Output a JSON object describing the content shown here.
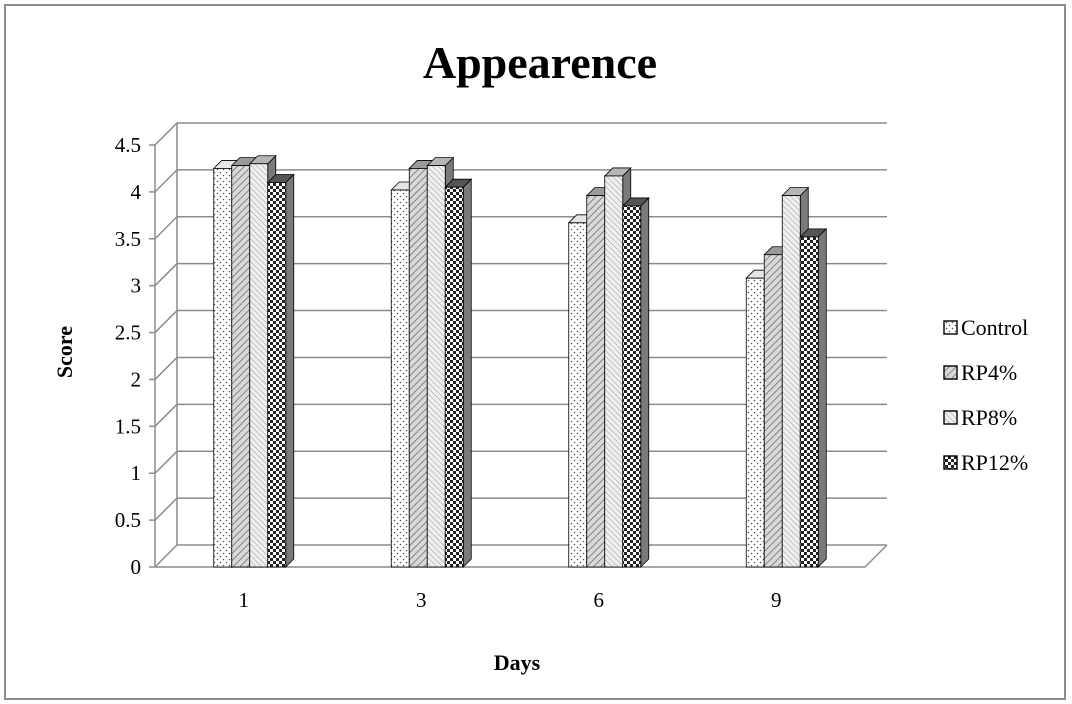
{
  "chart_data": {
    "type": "bar",
    "title": "Appearence",
    "xlabel": "Days",
    "ylabel": "Score",
    "categories": [
      "1",
      "3",
      "6",
      "9"
    ],
    "ylim": [
      0,
      4.5
    ],
    "y_ticks": [
      "0",
      "0.5",
      "1",
      "1.5",
      "2",
      "2.5",
      "3",
      "3.5",
      "4",
      "4.5"
    ],
    "grid": true,
    "legend_position": "right",
    "series": [
      {
        "name": "Control",
        "values": [
          4.25,
          4.02,
          3.67,
          3.08
        ],
        "pattern": "dots"
      },
      {
        "name": "RP4%",
        "values": [
          4.28,
          4.25,
          3.96,
          3.33
        ],
        "pattern": "diagonal"
      },
      {
        "name": "RP8%",
        "values": [
          4.3,
          4.28,
          4.17,
          3.96
        ],
        "pattern": "fine-diagonal"
      },
      {
        "name": "RP12%",
        "values": [
          4.1,
          4.05,
          3.85,
          3.52
        ],
        "pattern": "checker"
      }
    ]
  }
}
